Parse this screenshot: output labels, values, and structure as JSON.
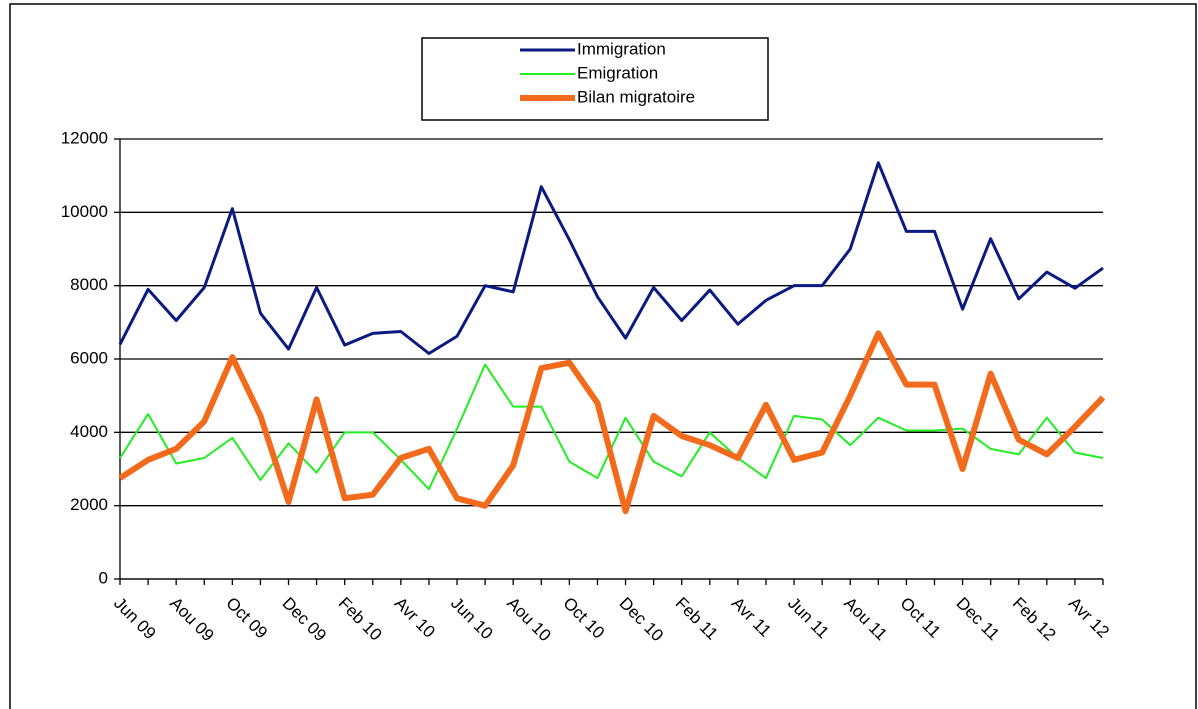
{
  "chart_data": {
    "type": "line",
    "categories": [
      "Jun 09",
      null,
      "Aou 09",
      null,
      "Oct 09",
      null,
      "Dec 09",
      null,
      "Feb 10",
      null,
      "Avr 10",
      null,
      "Jun 10",
      null,
      "Aou 10",
      null,
      "Oct 10",
      null,
      "Dec 10",
      null,
      "Feb 11",
      null,
      "Avr 11",
      null,
      "Jun 11",
      null,
      "Aou 11",
      null,
      "Oct 11",
      null,
      "Dec 11",
      null,
      "Feb 12",
      null,
      "Avr 12",
      null
    ],
    "series": [
      {
        "name": "Immigration",
        "color": "#0a1a80",
        "values": [
          6400,
          7900,
          7050,
          7950,
          10100,
          7250,
          6270,
          7950,
          6380,
          6700,
          6750,
          6150,
          6620,
          8000,
          7830,
          10700,
          9250,
          7700,
          6570,
          7950,
          7050,
          7880,
          6950,
          7600,
          8000,
          8000,
          9000,
          11350,
          9480,
          9480,
          7360,
          9280,
          7640,
          8370,
          7930,
          8480
        ]
      },
      {
        "name": "Emigration",
        "color": "#22ee22",
        "values": [
          3300,
          4500,
          3150,
          3300,
          3850,
          2700,
          3700,
          2900,
          4000,
          4000,
          3250,
          2450,
          4100,
          5850,
          4700,
          4700,
          3200,
          2750,
          4400,
          3200,
          2800,
          4000,
          3300,
          2750,
          4450,
          4350,
          3650,
          4400,
          4050,
          4050,
          4100,
          3550,
          3400,
          4400,
          3450,
          3300
        ]
      },
      {
        "name": "Bilan migratoire",
        "color": "#f26b1d",
        "values": [
          2750,
          3250,
          3550,
          4300,
          6050,
          4450,
          2100,
          4900,
          2200,
          2300,
          3300,
          3550,
          2200,
          2000,
          3100,
          5750,
          5900,
          4800,
          1850,
          4450,
          3900,
          3650,
          3300,
          4750,
          3250,
          3450,
          5000,
          6700,
          5300,
          5300,
          3000,
          5600,
          3800,
          3400,
          4150,
          4950
        ]
      }
    ],
    "ylim": [
      0,
      12000
    ],
    "yticks": [
      0,
      2000,
      4000,
      6000,
      8000,
      10000,
      12000
    ],
    "grid": true
  }
}
